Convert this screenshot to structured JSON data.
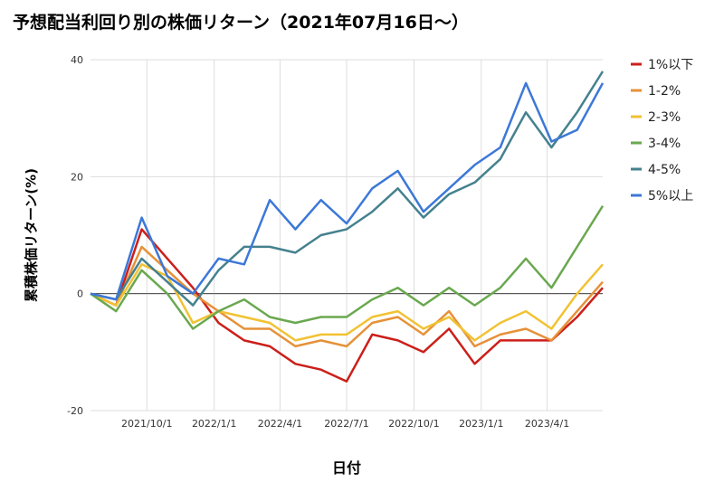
{
  "chart_data": {
    "type": "line",
    "title": "予想配当利回り別の株価リターン（2021年07月16日〜）",
    "xlabel": "日付",
    "ylabel": "累積株価リターン(%)",
    "ylim": [
      -20,
      40
    ],
    "yticks": [
      -20,
      0,
      20,
      40
    ],
    "xticks": [
      {
        "date": "2021-10-01",
        "label": "2021/10/1"
      },
      {
        "date": "2022-01-01",
        "label": "2022/1/1"
      },
      {
        "date": "2022-04-01",
        "label": "2022/4/1"
      },
      {
        "date": "2022-07-01",
        "label": "2022/7/1"
      },
      {
        "date": "2022-10-01",
        "label": "2022/10/1"
      },
      {
        "date": "2023-01-01",
        "label": "2023/1/1"
      },
      {
        "date": "2023-04-01",
        "label": "2023/4/1"
      }
    ],
    "grid": true,
    "legend_position": "right",
    "x": [
      "2021-07-16",
      "2021-08-20",
      "2021-09-24",
      "2021-10-29",
      "2021-12-03",
      "2022-01-07",
      "2022-02-11",
      "2022-03-18",
      "2022-04-22",
      "2022-05-27",
      "2022-07-01",
      "2022-08-05",
      "2022-09-09",
      "2022-10-14",
      "2022-11-18",
      "2022-12-23",
      "2023-01-27",
      "2023-03-03",
      "2023-04-07",
      "2023-05-12",
      "2023-06-16"
    ],
    "series": [
      {
        "name": "1%以下",
        "color": "#cc1f1a",
        "values": [
          0,
          -2,
          11,
          6,
          1,
          -5,
          -8,
          -9,
          -12,
          -13,
          -15,
          -7,
          -8,
          -10,
          -6,
          -12,
          -8,
          -8,
          -8,
          -4,
          1
        ]
      },
      {
        "name": "1-2%",
        "color": "#e69138",
        "values": [
          0,
          -2,
          8,
          4,
          0,
          -3,
          -6,
          -6,
          -9,
          -8,
          -9,
          -5,
          -4,
          -7,
          -3,
          -9,
          -7,
          -6,
          -8,
          -3,
          2
        ]
      },
      {
        "name": "2-3%",
        "color": "#f1c232",
        "values": [
          0,
          -2,
          5,
          3,
          -5,
          -3,
          -4,
          -5,
          -8,
          -7,
          -7,
          -4,
          -3,
          -6,
          -4,
          -8,
          -5,
          -3,
          -6,
          0,
          5
        ]
      },
      {
        "name": "3-4%",
        "color": "#6aa84f",
        "values": [
          0,
          -3,
          4,
          0,
          -6,
          -3,
          -1,
          -4,
          -5,
          -4,
          -4,
          -1,
          1,
          -2,
          1,
          -2,
          1,
          6,
          1,
          8,
          15
        ]
      },
      {
        "name": "4-5%",
        "color": "#45818e",
        "values": [
          0,
          -1,
          6,
          2,
          -2,
          4,
          8,
          8,
          7,
          10,
          11,
          14,
          18,
          13,
          17,
          19,
          23,
          31,
          25,
          31,
          38
        ]
      },
      {
        "name": "5%以上",
        "color": "#3c78d8",
        "values": [
          0,
          -1,
          13,
          3,
          0,
          6,
          5,
          16,
          11,
          16,
          12,
          18,
          21,
          14,
          18,
          22,
          25,
          36,
          26,
          28,
          36
        ]
      }
    ]
  }
}
